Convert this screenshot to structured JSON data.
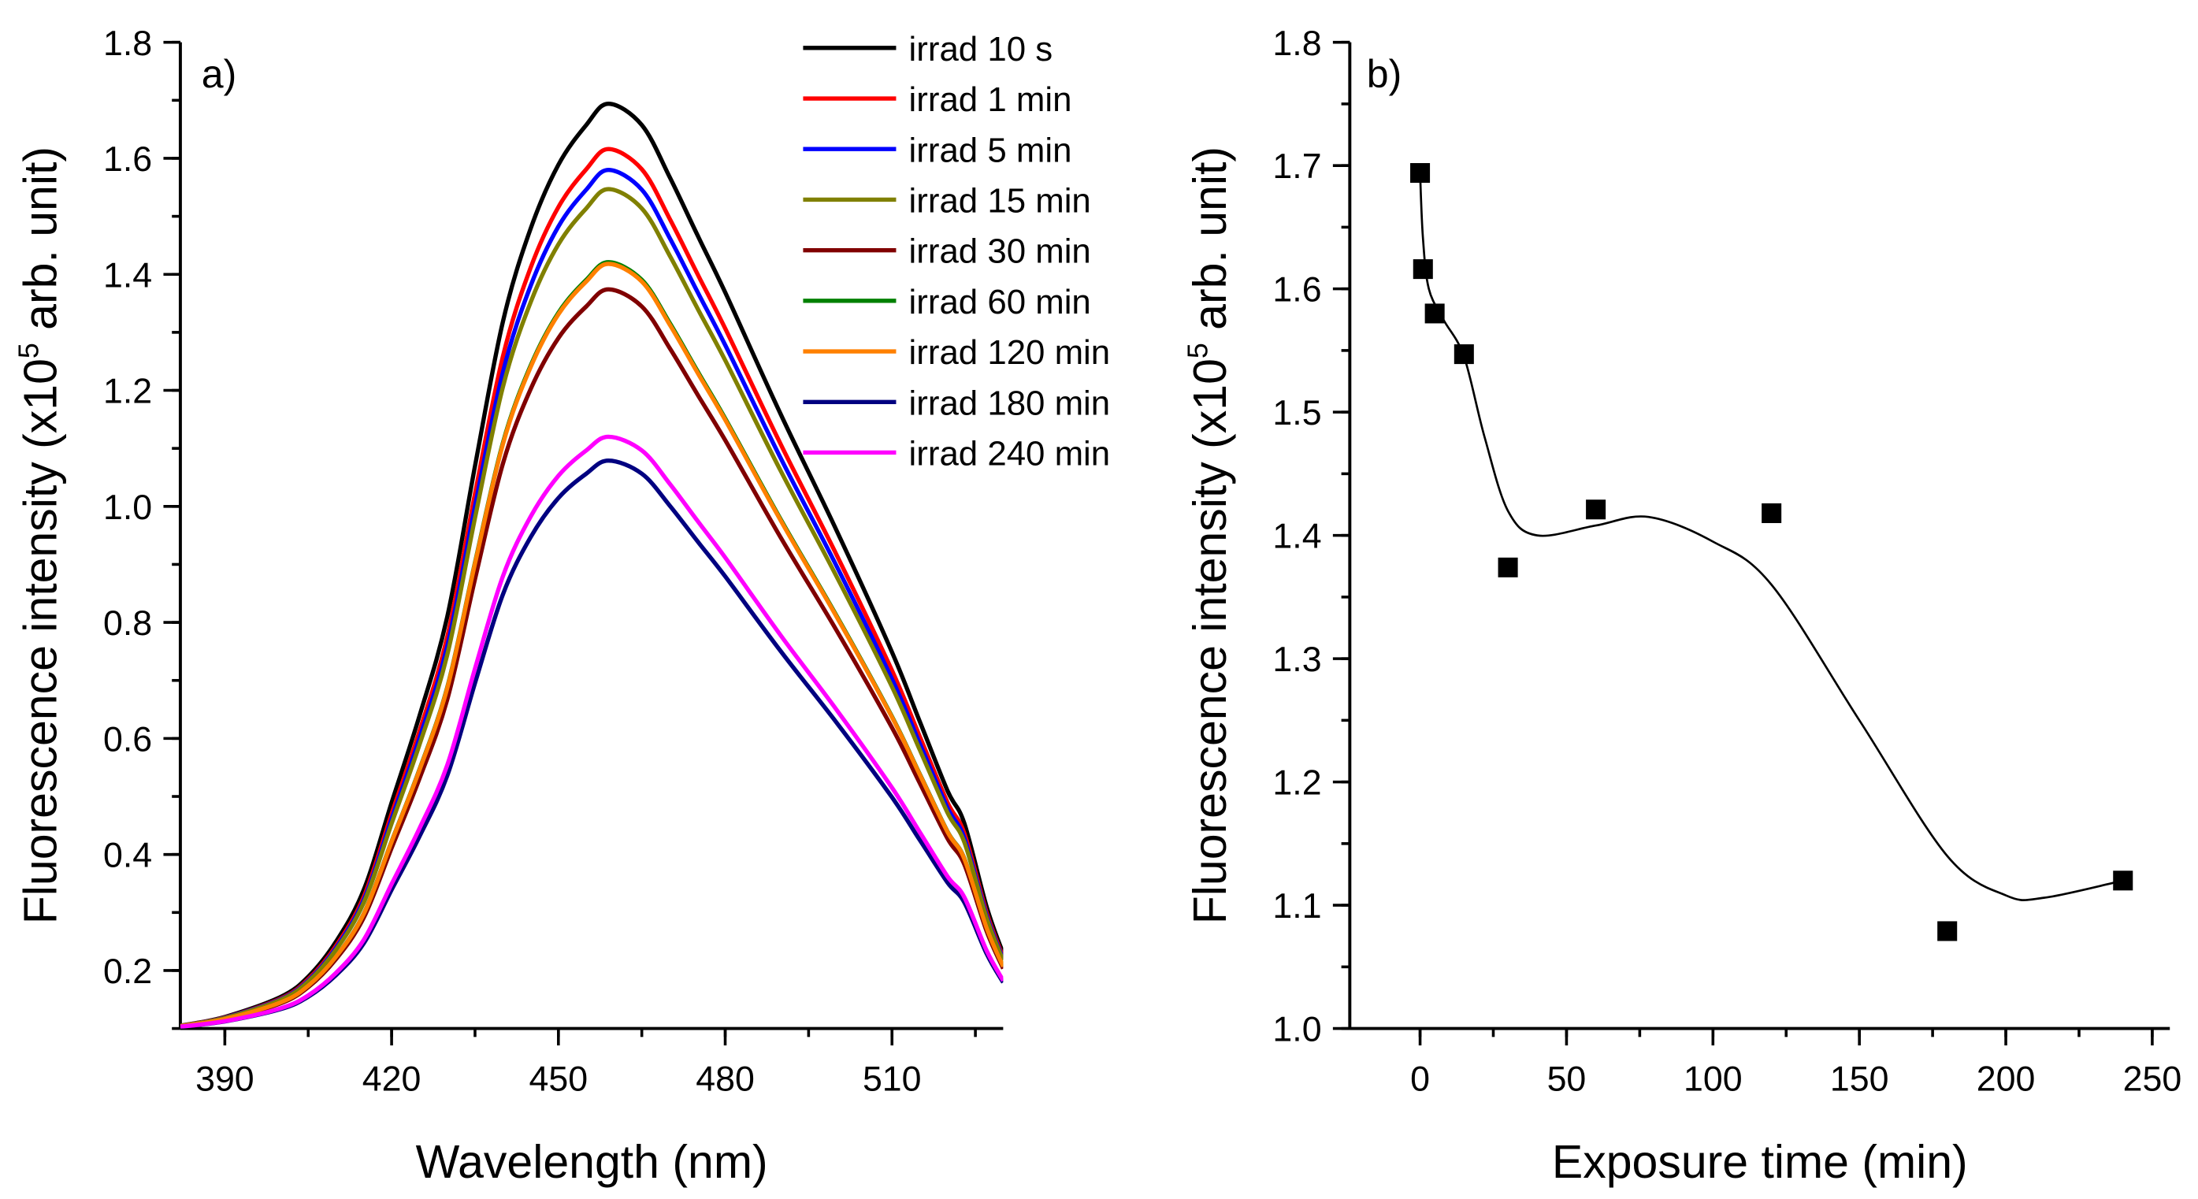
{
  "chart_data": [
    {
      "type": "line",
      "panel_label": "a)",
      "xlabel": "Wavelength (nm)",
      "ylabel_main": "Fluorescence intensity (x10",
      "ylabel_sup": "5",
      "ylabel_tail": " arb. unit)",
      "xlim": [
        382,
        530
      ],
      "ylim": [
        0.1,
        1.8
      ],
      "xticks": [
        390,
        420,
        450,
        480,
        510
      ],
      "xtick_labels": [
        "390",
        "420",
        "450",
        "480",
        "510"
      ],
      "xminor_step": 15,
      "yticks": [
        0.2,
        0.4,
        0.6,
        0.8,
        1.0,
        1.2,
        1.4,
        1.6,
        1.8
      ],
      "ytick_labels": [
        "0.2",
        "0.4",
        "0.6",
        "0.8",
        "1.0",
        "1.2",
        "1.4",
        "1.6",
        "1.8"
      ],
      "yminor_step": 0.1,
      "grid": false,
      "legend_position": "top-right",
      "baseline": 0.1,
      "x": [
        382,
        390,
        400,
        405,
        410,
        415,
        420,
        425,
        430,
        435,
        440,
        445,
        450,
        455,
        459,
        465,
        470,
        475,
        480,
        490,
        500,
        510,
        515,
        520,
        523,
        527,
        530
      ],
      "normalized_profile": [
        0.003,
        0.0125,
        0.034,
        0.056,
        0.094,
        0.15,
        0.244,
        0.338,
        0.445,
        0.608,
        0.764,
        0.865,
        0.934,
        0.977,
        1.0,
        0.977,
        0.921,
        0.858,
        0.796,
        0.664,
        0.539,
        0.407,
        0.332,
        0.257,
        0.222,
        0.132,
        0.081
      ],
      "series": [
        {
          "name": "irrad 10 s",
          "peak": 1.694,
          "color": "#000000"
        },
        {
          "name": "irrad 1 min",
          "peak": 1.616,
          "color": "#ff0000"
        },
        {
          "name": "irrad 5 min",
          "peak": 1.58,
          "color": "#0000ff"
        },
        {
          "name": "irrad 15 min",
          "peak": 1.547,
          "color": "#808000"
        },
        {
          "name": "irrad 30 min",
          "peak": 1.374,
          "color": "#800000"
        },
        {
          "name": "irrad 60 min",
          "peak": 1.421,
          "color": "#008000"
        },
        {
          "name": "irrad 120 min",
          "peak": 1.418,
          "color": "#ff8000"
        },
        {
          "name": "irrad 180 min",
          "peak": 1.079,
          "color": "#000080"
        },
        {
          "name": "irrad 240 min",
          "peak": 1.12,
          "color": "#ff00ff"
        }
      ]
    },
    {
      "type": "scatter",
      "panel_label": "b)",
      "xlabel": "Exposure time (min)",
      "ylabel_main": "Fluorescence intensity (x10",
      "ylabel_sup": "5",
      "ylabel_tail": " arb. unit)",
      "xlim": [
        -24,
        256
      ],
      "ylim": [
        1.0,
        1.8
      ],
      "xticks": [
        0,
        50,
        100,
        150,
        200,
        250
      ],
      "xtick_labels": [
        "0",
        "50",
        "100",
        "150",
        "200",
        "250"
      ],
      "xminor_step": 25,
      "yticks": [
        1.0,
        1.1,
        1.2,
        1.3,
        1.4,
        1.5,
        1.6,
        1.7,
        1.8
      ],
      "ytick_labels": [
        "1.0",
        "1.1",
        "1.2",
        "1.3",
        "1.4",
        "1.5",
        "1.6",
        "1.7",
        "1.8"
      ],
      "yminor_step": 0.05,
      "grid": false,
      "points": {
        "x": [
          0,
          1,
          5,
          15,
          30,
          60,
          120,
          180,
          240
        ],
        "y": [
          1.694,
          1.616,
          1.58,
          1.547,
          1.374,
          1.421,
          1.418,
          1.079,
          1.12
        ]
      },
      "fit_curve": {
        "x": [
          0,
          1,
          3,
          8,
          15,
          22,
          30,
          40,
          60,
          78,
          100,
          120,
          150,
          180,
          200,
          213,
          240
        ],
        "y": [
          1.694,
          1.64,
          1.6,
          1.575,
          1.545,
          1.48,
          1.42,
          1.4,
          1.408,
          1.415,
          1.395,
          1.36,
          1.25,
          1.14,
          1.108,
          1.106,
          1.12
        ]
      }
    }
  ]
}
